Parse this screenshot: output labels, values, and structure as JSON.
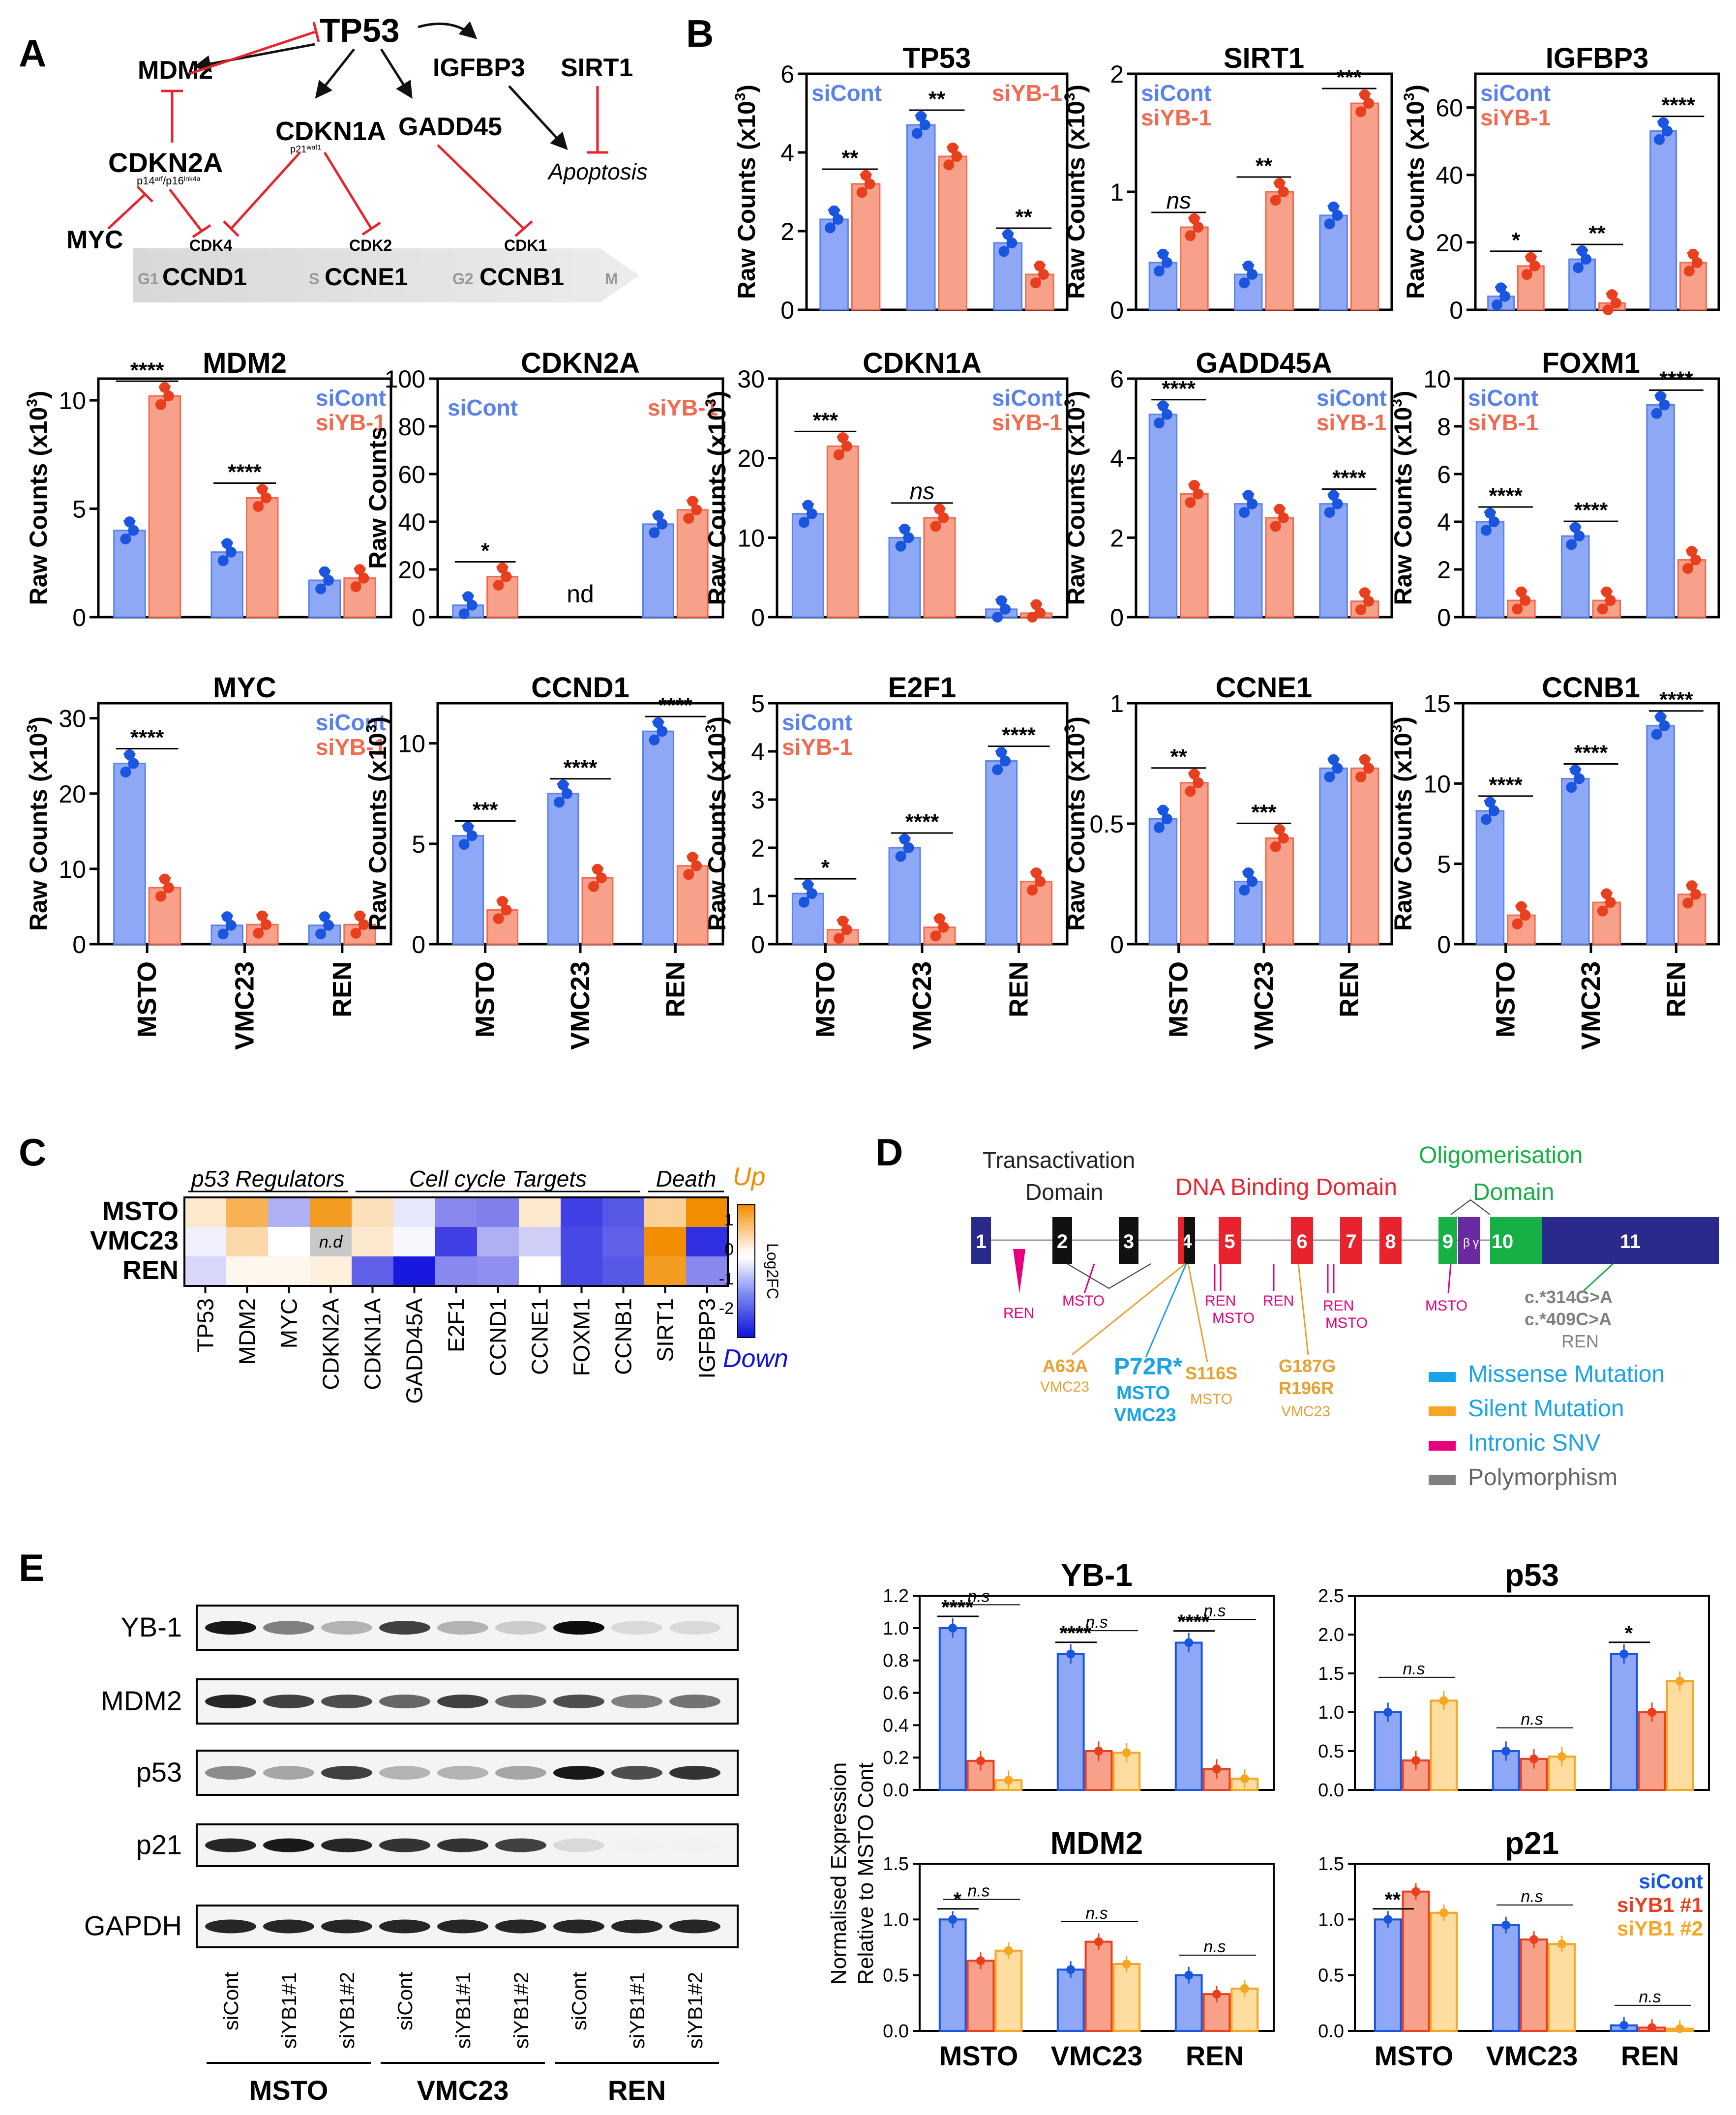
{
  "colors": {
    "cont": "#5a82ee",
    "cont_fill": "#8fa8f5",
    "cont_dot": "#1a55e0",
    "yb": "#f26a4f",
    "yb_fill": "#f7a08a",
    "yb_dot": "#e8401f",
    "orange": "#f5a623",
    "up": "#f28c00",
    "down": "#1010dd",
    "red": "#e8232e",
    "green": "#16b045",
    "navy": "#2a2a8c",
    "purple": "#6a2aa0",
    "pink": "#e6007e",
    "cyan": "#1aa3e8",
    "grey": "#808080",
    "tan": "#e8a030"
  },
  "cells": [
    "MSTO",
    "VMC23",
    "REN"
  ],
  "panelA": {
    "label": "A",
    "nodes": {
      "tp53": "TP53",
      "mdm2": "MDM2",
      "igfbp3": "IGFBP3",
      "sirt1": "SIRT1",
      "cdkn1a": "CDKN1A",
      "cdkn1a_sub": "p21",
      "cdkn1a_sup": "waf1",
      "gadd45": "GADD45",
      "cdkn2a": "CDKN2A",
      "cdkn2a_sub": "p14",
      "cdkn2a_sup1": "arf",
      "cdkn2a_mid": "/p16",
      "cdkn2a_sup2": "ink4a",
      "apoptosis": "Apoptosis",
      "myc": "MYC",
      "cdk4": "CDK4",
      "cdk2": "CDK2",
      "cdk1": "CDK1",
      "ccnd1": "CCND1",
      "ccne1": "CCNE1",
      "ccnb1": "CCNB1",
      "g1": "G1",
      "s": "S",
      "g2": "G2",
      "m": "M"
    }
  },
  "panelB": {
    "label": "B",
    "legend_cont": "siCont",
    "legend_yb": "siYB-1",
    "ylabel_x": "Raw Counts (x10",
    "ylabel_sup": "3",
    "ylabel_plain": "Raw Counts",
    "nd": "nd"
  },
  "chart_data": [
    {
      "type": "bar",
      "title": "TP53",
      "categories": [
        "MSTO",
        "VMC23",
        "REN"
      ],
      "ylim": [
        0,
        6
      ],
      "ticks": [
        "0",
        "2",
        "4",
        "6"
      ],
      "series": [
        {
          "name": "siCont",
          "values": [
            2.3,
            4.7,
            1.7
          ]
        },
        {
          "name": "siYB-1",
          "values": [
            3.2,
            3.9,
            0.9
          ]
        }
      ],
      "sig": [
        "**",
        "**",
        "**"
      ]
    },
    {
      "type": "bar",
      "title": "SIRT1",
      "categories": [
        "MSTO",
        "VMC23",
        "REN"
      ],
      "ylim": [
        0,
        2
      ],
      "ticks": [
        "0",
        "1",
        "2"
      ],
      "series": [
        {
          "name": "siCont",
          "values": [
            0.4,
            0.3,
            0.8
          ]
        },
        {
          "name": "siYB-1",
          "values": [
            0.7,
            1.0,
            1.75
          ]
        }
      ],
      "sig": [
        "ns",
        "**",
        "***"
      ]
    },
    {
      "type": "bar",
      "title": "IGFBP3",
      "categories": [
        "MSTO",
        "VMC23",
        "REN"
      ],
      "ylim": [
        0,
        70
      ],
      "ticks": [
        "0",
        "20",
        "40",
        "60"
      ],
      "series": [
        {
          "name": "siCont",
          "values": [
            4,
            15,
            53
          ]
        },
        {
          "name": "siYB-1",
          "values": [
            13,
            2,
            14
          ]
        }
      ],
      "sig": [
        "*",
        "**",
        "****"
      ]
    },
    {
      "type": "bar",
      "title": "MDM2",
      "categories": [
        "MSTO",
        "VMC23",
        "REN"
      ],
      "ylim": [
        0,
        11
      ],
      "ticks": [
        "0",
        "5",
        "10"
      ],
      "series": [
        {
          "name": "siCont",
          "values": [
            4.0,
            3.0,
            1.7
          ]
        },
        {
          "name": "siYB-1",
          "values": [
            10.2,
            5.5,
            1.8
          ]
        }
      ],
      "sig": [
        "****",
        "****",
        ""
      ]
    },
    {
      "type": "bar",
      "title": "CDKN2A",
      "categories": [
        "MSTO",
        "VMC23",
        "REN"
      ],
      "ylim": [
        0,
        100
      ],
      "ticks": [
        "0",
        "20",
        "40",
        "60",
        "80",
        "100"
      ],
      "series": [
        {
          "name": "siCont",
          "values": [
            5,
            null,
            39
          ]
        },
        {
          "name": "siYB-1",
          "values": [
            17,
            null,
            45
          ]
        }
      ],
      "sig": [
        "*",
        "",
        ""
      ]
    },
    {
      "type": "bar",
      "title": "CDKN1A",
      "categories": [
        "MSTO",
        "VMC23",
        "REN"
      ],
      "ylim": [
        0,
        30
      ],
      "ticks": [
        "0",
        "10",
        "20",
        "30"
      ],
      "series": [
        {
          "name": "siCont",
          "values": [
            13,
            10,
            1
          ]
        },
        {
          "name": "siYB-1",
          "values": [
            21.5,
            12.5,
            0.5
          ]
        }
      ],
      "sig": [
        "***",
        "ns",
        ""
      ]
    },
    {
      "type": "bar",
      "title": "GADD45A",
      "categories": [
        "MSTO",
        "VMC23",
        "REN"
      ],
      "ylim": [
        0,
        6
      ],
      "ticks": [
        "0",
        "2",
        "4",
        "6"
      ],
      "series": [
        {
          "name": "siCont",
          "values": [
            5.1,
            2.85,
            2.85
          ]
        },
        {
          "name": "siYB-1",
          "values": [
            3.1,
            2.5,
            0.4
          ]
        }
      ],
      "sig": [
        "****",
        "",
        "****"
      ]
    },
    {
      "type": "bar",
      "title": "FOXM1",
      "categories": [
        "MSTO",
        "VMC23",
        "REN"
      ],
      "ylim": [
        0,
        10
      ],
      "ticks": [
        "0",
        "2",
        "4",
        "6",
        "8",
        "10"
      ],
      "series": [
        {
          "name": "siCont",
          "values": [
            4.0,
            3.4,
            8.9
          ]
        },
        {
          "name": "siYB-1",
          "values": [
            0.7,
            0.7,
            2.4
          ]
        }
      ],
      "sig": [
        "****",
        "****",
        "****"
      ]
    },
    {
      "type": "bar",
      "title": "MYC",
      "categories": [
        "MSTO",
        "VMC23",
        "REN"
      ],
      "ylim": [
        0,
        32
      ],
      "ticks": [
        "0",
        "10",
        "20",
        "30"
      ],
      "series": [
        {
          "name": "siCont",
          "values": [
            24,
            2.5,
            2.5
          ]
        },
        {
          "name": "siYB-1",
          "values": [
            7.5,
            2.6,
            2.6
          ]
        }
      ],
      "sig": [
        "****",
        "",
        ""
      ]
    },
    {
      "type": "bar",
      "title": "CCND1",
      "categories": [
        "MSTO",
        "VMC23",
        "REN"
      ],
      "ylim": [
        0,
        12
      ],
      "ticks": [
        "0",
        "5",
        "10"
      ],
      "series": [
        {
          "name": "siCont",
          "values": [
            5.4,
            7.5,
            10.6
          ]
        },
        {
          "name": "siYB-1",
          "values": [
            1.7,
            3.3,
            3.9
          ]
        }
      ],
      "sig": [
        "***",
        "****",
        "****"
      ]
    },
    {
      "type": "bar",
      "title": "E2F1",
      "categories": [
        "MSTO",
        "VMC23",
        "REN"
      ],
      "ylim": [
        0,
        5
      ],
      "ticks": [
        "0",
        "1",
        "2",
        "3",
        "4",
        "5"
      ],
      "series": [
        {
          "name": "siCont",
          "values": [
            1.05,
            2.0,
            3.8
          ]
        },
        {
          "name": "siYB-1",
          "values": [
            0.3,
            0.35,
            1.3
          ]
        }
      ],
      "sig": [
        "*",
        "****",
        "****"
      ]
    },
    {
      "type": "bar",
      "title": "CCNE1",
      "categories": [
        "MSTO",
        "VMC23",
        "REN"
      ],
      "ylim": [
        0,
        1
      ],
      "ticks": [
        "0",
        "0.5",
        "1"
      ],
      "series": [
        {
          "name": "siCont",
          "values": [
            0.52,
            0.26,
            0.73
          ]
        },
        {
          "name": "siYB-1",
          "values": [
            0.67,
            0.44,
            0.73
          ]
        }
      ],
      "sig": [
        "**",
        "***",
        ""
      ]
    },
    {
      "type": "bar",
      "title": "CCNB1",
      "categories": [
        "MSTO",
        "VMC23",
        "REN"
      ],
      "ylim": [
        0,
        15
      ],
      "ticks": [
        "0",
        "5",
        "10",
        "15"
      ],
      "series": [
        {
          "name": "siCont",
          "values": [
            8.3,
            10.3,
            13.6
          ]
        },
        {
          "name": "siYB-1",
          "values": [
            1.8,
            2.6,
            3.1
          ]
        }
      ],
      "sig": [
        "****",
        "****",
        "****"
      ]
    },
    {
      "type": "heatmap",
      "rows": [
        "MSTO",
        "VMC23",
        "REN"
      ],
      "columns": [
        "TP53",
        "MDM2",
        "MYC",
        "CDKN2A",
        "CDKN1A",
        "GADD45A",
        "E2F1",
        "CCND1",
        "CCNE1",
        "FOXM1",
        "CCNB1",
        "SIRT1",
        "IGFBP3"
      ],
      "values": [
        [
          0.3,
          1.0,
          -1.0,
          1.3,
          0.4,
          -0.3,
          -1.5,
          -1.6,
          0.3,
          -2.4,
          -2.1,
          0.6,
          1.5
        ],
        [
          -0.2,
          0.5,
          0,
          null,
          0.3,
          -0.1,
          -2.4,
          -1.0,
          -0.6,
          -2.3,
          -2.0,
          1.8,
          -2.6
        ],
        [
          -0.5,
          0.1,
          0.1,
          0.2,
          -2.0,
          -2.9,
          -1.5,
          -1.4,
          0,
          -2.3,
          -2.1,
          1.3,
          -1.5
        ]
      ],
      "scale": [
        "1",
        "0",
        "-1",
        "-2"
      ],
      "scale_range": [
        -3,
        1.5
      ],
      "groups": [
        "p53 Regulators",
        "Cell cycle Targets",
        "Death"
      ],
      "legend_up": "Up",
      "legend_down": "Down",
      "legend_axis": "Log2FC",
      "nd": "n.d",
      "label": "C"
    },
    {
      "type": "bar",
      "title": "YB-1",
      "categories": [
        "MSTO",
        "VMC23",
        "REN"
      ],
      "ylim": [
        0,
        1.2
      ],
      "ticks": [
        "0.0",
        "0.2",
        "0.4",
        "0.6",
        "0.8",
        "1.0",
        "1.2"
      ],
      "series": [
        {
          "name": "siCont",
          "values": [
            1.0,
            0.84,
            0.91
          ]
        },
        {
          "name": "siYB1 #1",
          "values": [
            0.18,
            0.24,
            0.13
          ]
        },
        {
          "name": "siYB1 #2",
          "values": [
            0.06,
            0.23,
            0.07
          ]
        }
      ],
      "sig": [
        "****",
        "****",
        "****"
      ],
      "ns": [
        "n.s",
        "n.s",
        "n.s"
      ]
    },
    {
      "type": "bar",
      "title": "p53",
      "categories": [
        "MSTO",
        "VMC23",
        "REN"
      ],
      "ylim": [
        0,
        2.5
      ],
      "ticks": [
        "0.0",
        "0.5",
        "1.0",
        "1.5",
        "2.0",
        "2.5"
      ],
      "series": [
        {
          "name": "siCont",
          "values": [
            1.0,
            0.5,
            1.75
          ]
        },
        {
          "name": "siYB1 #1",
          "values": [
            0.38,
            0.4,
            1.0
          ]
        },
        {
          "name": "siYB1 #2",
          "values": [
            1.15,
            0.43,
            1.4
          ]
        }
      ],
      "sig": [
        "",
        "",
        "*"
      ],
      "ns": [
        "n.s",
        "n.s",
        ""
      ]
    },
    {
      "type": "bar",
      "title": "MDM2",
      "categories": [
        "MSTO",
        "VMC23",
        "REN"
      ],
      "ylim": [
        0,
        1.5
      ],
      "ticks": [
        "0.0",
        "0.5",
        "1.0",
        "1.5"
      ],
      "series": [
        {
          "name": "siCont",
          "values": [
            1.0,
            0.55,
            0.5
          ]
        },
        {
          "name": "siYB1 #1",
          "values": [
            0.63,
            0.8,
            0.33
          ]
        },
        {
          "name": "siYB1 #2",
          "values": [
            0.72,
            0.6,
            0.38
          ]
        }
      ],
      "sig": [
        "*",
        "",
        ""
      ],
      "ns": [
        "n.s",
        "n.s",
        "n.s"
      ]
    },
    {
      "type": "bar",
      "title": "p21",
      "categories": [
        "MSTO",
        "VMC23",
        "REN"
      ],
      "ylim": [
        0,
        1.5
      ],
      "ticks": [
        "0.0",
        "0.5",
        "1.0",
        "1.5"
      ],
      "series": [
        {
          "name": "siCont",
          "values": [
            1.0,
            0.95,
            0.05
          ]
        },
        {
          "name": "siYB1 #1",
          "values": [
            1.25,
            0.82,
            0.03
          ]
        },
        {
          "name": "siYB1 #2",
          "values": [
            1.06,
            0.78,
            0.02
          ]
        }
      ],
      "sig": [
        "**",
        "",
        ""
      ],
      "ns": [
        "",
        "n.s",
        "n.s"
      ]
    }
  ],
  "panelD": {
    "label": "D",
    "trans": "Transactivation",
    "domain": "Domain",
    "dbd": "DNA Binding Domain",
    "oligo": "Oligomerisation",
    "exons": [
      "1",
      "2",
      "3",
      "4",
      "5",
      "6",
      "7",
      "8",
      "9",
      "10",
      "11"
    ],
    "beta": "β",
    "gamma": "γ",
    "labels": {
      "ren1": "REN",
      "msto1": "MSTO",
      "ren2": "REN",
      "msto2": "MSTO",
      "ren3": "REN",
      "ren4": "REN",
      "msto3": "MSTO",
      "msto4": "MSTO",
      "c314": "c.*314G>A",
      "c409": "c.*409C>A",
      "ren5": "REN",
      "a63a": "A63A",
      "vmc1": "VMC23",
      "p72r": "P72R*",
      "p72r_msto": "MSTO",
      "p72r_vmc": "VMC23",
      "s116s": "S116S",
      "s116s_msto": "MSTO",
      "g187g": "G187G",
      "r196r": "R196R",
      "vmc2": "VMC23"
    },
    "legend": [
      "Missense Mutation",
      "Silent Mutation",
      "Intronic SNV",
      "Polymorphism"
    ]
  },
  "panelE": {
    "label": "E",
    "proteins": [
      "YB-1",
      "MDM2",
      "p53",
      "p21",
      "GAPDH"
    ],
    "lanes": [
      "siCont",
      "siYB1#1",
      "siYB1#2",
      "siCont",
      "siYB1#1",
      "siYB1#2",
      "siCont",
      "siYB1#1",
      "siYB1#2"
    ],
    "ylabel1": "Normalised Expression",
    "ylabel2": "Relative to MSTO Cont",
    "legend": [
      "siCont",
      "siYB1 #1",
      "siYB1 #2"
    ]
  }
}
